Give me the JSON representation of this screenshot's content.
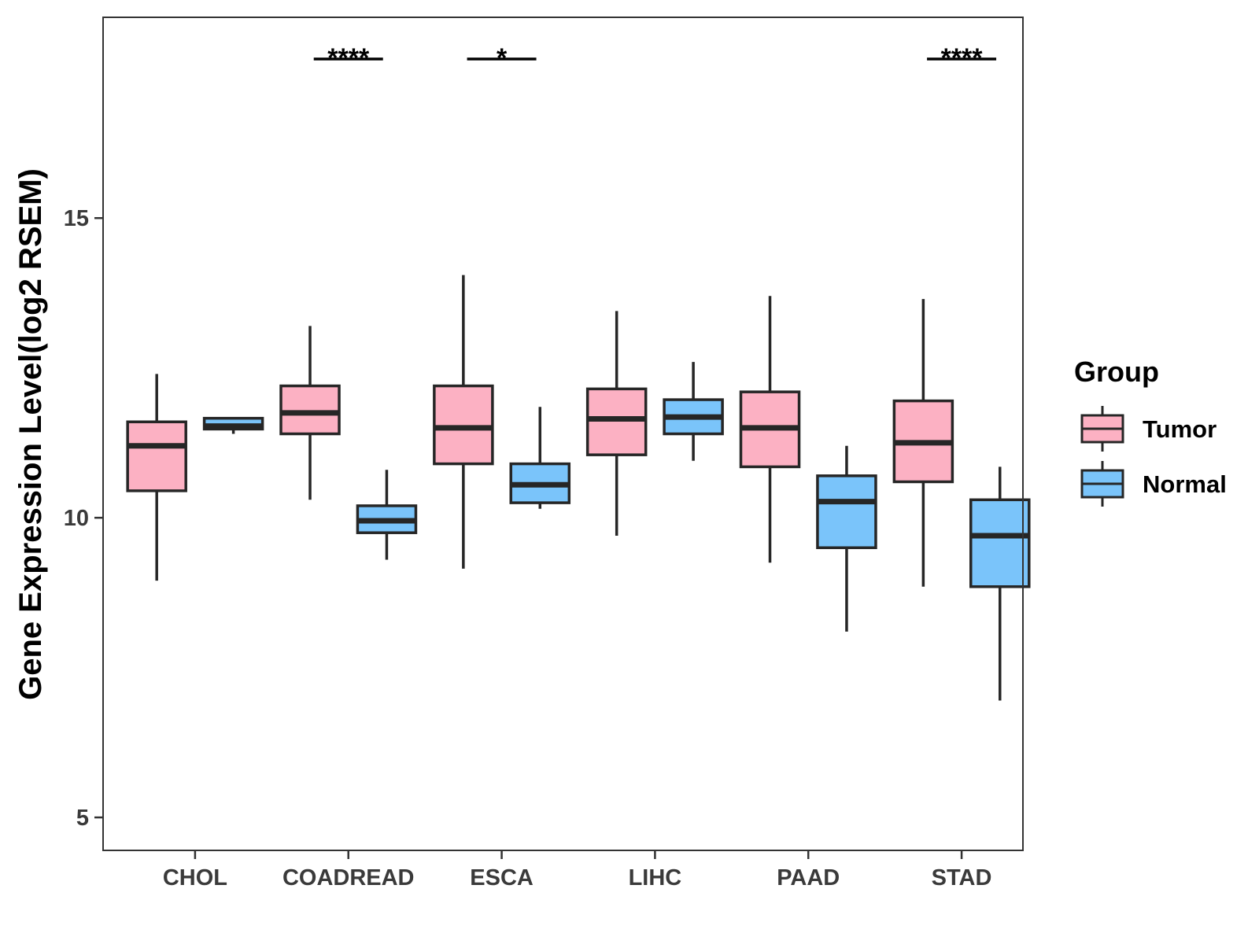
{
  "chart_data": {
    "type": "boxplot",
    "title": "",
    "xlabel": "",
    "ylabel": "Gene Expression Level(log2 RSEM)",
    "ylim": [
      4.45,
      18.35
    ],
    "yticks": [
      5,
      10,
      15
    ],
    "grid": false,
    "legend_position": "right",
    "legend_title": "Group",
    "colors": {
      "Tumor": "#FCB1C3",
      "Normal": "#7AC4FA",
      "outline": "#262626"
    },
    "categories": [
      "CHOL",
      "COADREAD",
      "ESCA",
      "LIHC",
      "PAAD",
      "STAD"
    ],
    "series": [
      {
        "name": "Tumor",
        "boxes": [
          {
            "whisker_low": 8.95,
            "q1": 10.45,
            "median": 11.2,
            "q3": 11.6,
            "whisker_high": 12.4
          },
          {
            "whisker_low": 10.3,
            "q1": 11.4,
            "median": 11.75,
            "q3": 12.2,
            "whisker_high": 13.2
          },
          {
            "whisker_low": 9.15,
            "q1": 10.9,
            "median": 11.5,
            "q3": 12.2,
            "whisker_high": 14.05
          },
          {
            "whisker_low": 9.7,
            "q1": 11.05,
            "median": 11.65,
            "q3": 12.15,
            "whisker_high": 13.45
          },
          {
            "whisker_low": 9.25,
            "q1": 10.85,
            "median": 11.5,
            "q3": 12.1,
            "whisker_high": 13.7
          },
          {
            "whisker_low": 8.85,
            "q1": 10.6,
            "median": 11.25,
            "q3": 11.95,
            "whisker_high": 13.65
          }
        ]
      },
      {
        "name": "Normal",
        "boxes": [
          {
            "whisker_low": 11.4,
            "q1": 11.48,
            "median": 11.53,
            "q3": 11.66,
            "whisker_high": 11.68
          },
          {
            "whisker_low": 9.3,
            "q1": 9.75,
            "median": 9.95,
            "q3": 10.2,
            "whisker_high": 10.8
          },
          {
            "whisker_low": 10.15,
            "q1": 10.25,
            "median": 10.55,
            "q3": 10.9,
            "whisker_high": 11.85
          },
          {
            "whisker_low": 10.95,
            "q1": 11.4,
            "median": 11.68,
            "q3": 11.97,
            "whisker_high": 12.6
          },
          {
            "whisker_low": 8.1,
            "q1": 9.5,
            "median": 10.27,
            "q3": 10.7,
            "whisker_high": 11.2
          },
          {
            "whisker_low": 6.95,
            "q1": 8.85,
            "median": 9.7,
            "q3": 10.3,
            "whisker_high": 10.85
          }
        ]
      }
    ],
    "annotations": [
      {
        "category": "COADREAD",
        "label": "****"
      },
      {
        "category": "ESCA",
        "label": "*"
      },
      {
        "category": "STAD",
        "label": "****"
      }
    ]
  }
}
